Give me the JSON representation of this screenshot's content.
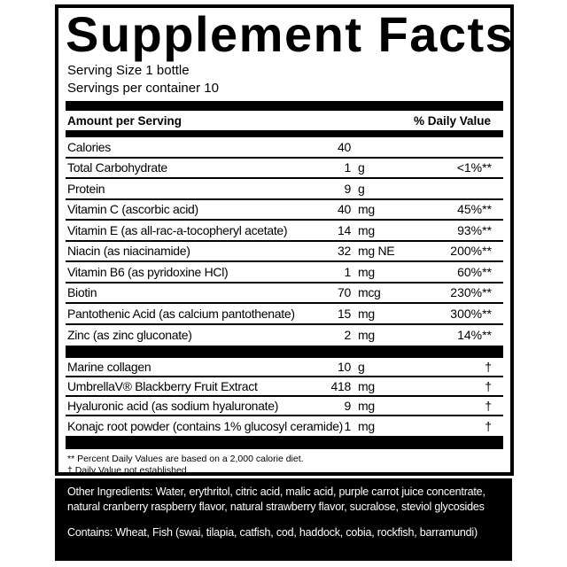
{
  "label": {
    "title": "Supplement Facts",
    "serving_size": "Serving Size 1 bottle",
    "servings_per_container": "Servings per container 10",
    "header": {
      "amount": "Amount per Serving",
      "daily_value": "% Daily Value"
    },
    "rows": [
      {
        "name": "Calories",
        "num": "40",
        "unit": "",
        "dv": ""
      },
      {
        "name": "Total Carbohydrate",
        "num": "1",
        "unit": "g",
        "dv": "<1%**"
      },
      {
        "name": "Protein",
        "num": "9",
        "unit": "g",
        "dv": ""
      },
      {
        "name": "Vitamin C (ascorbic acid)",
        "num": "40",
        "unit": "mg",
        "dv": "45%**"
      },
      {
        "name": "Vitamin E (as all-rac-a-tocopheryl acetate)",
        "num": "14",
        "unit": "mg",
        "dv": "93%**"
      },
      {
        "name": "Niacin (as niacinamide)",
        "num": "32",
        "unit": "mg NE",
        "dv": "200%**"
      },
      {
        "name": "Vitamin B6 (as pyridoxine HCl)",
        "num": "1",
        "unit": "mg",
        "dv": "60%**"
      },
      {
        "name": "Biotin",
        "num": "70",
        "unit": "mcg",
        "dv": "230%**"
      },
      {
        "name": "Pantothenic Acid (as calcium pantothenate)",
        "num": "15",
        "unit": "mg",
        "dv": "300%**"
      },
      {
        "name": "Zinc (as zinc gluconate)",
        "num": "2",
        "unit": "mg",
        "dv": "14%**"
      }
    ],
    "rows2": [
      {
        "name": "Marine collagen",
        "num": "10",
        "unit": "g",
        "dv": "†"
      },
      {
        "name": "UmbrellaV® Blackberry Fruit Extract",
        "num": "418",
        "unit": "mg",
        "dv": "†"
      },
      {
        "name": "Hyaluronic acid (as sodium hyaluronate)",
        "num": "9",
        "unit": "mg",
        "dv": "†"
      },
      {
        "name": "Konajc root powder (contains 1% glucosyl ceramide)",
        "num": "1",
        "unit": "mg",
        "dv": "†"
      }
    ],
    "footnotes": {
      "percent": "** Percent Daily Values are based on a 2,000 calorie diet.",
      "dagger": "† Daily Value not established."
    }
  },
  "ingredients": {
    "other": "Other Ingredients: Water, erythritol, citric acid, malic acid, purple carrot juice concentrate, natural cranberry raspberry flavor, natural strawberry flavor, sucralose, steviol glycosides",
    "contains": "Contains: Wheat, Fish (swai, tilapia, catfish, cod, haddock, cobia, rockfish, barramundi)"
  },
  "colors": {
    "ink": "#000000",
    "paper": "#ffffff",
    "panel_bg": "#000000",
    "panel_text": "#ffffff"
  }
}
